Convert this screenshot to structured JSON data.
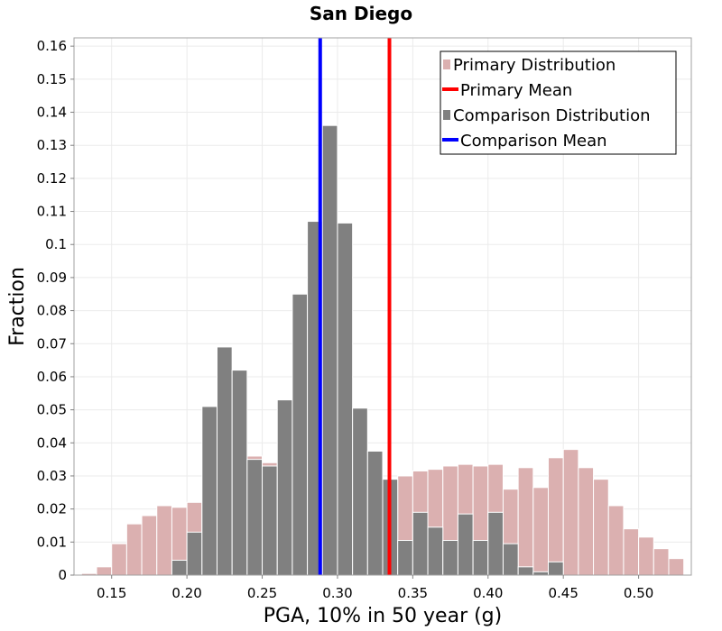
{
  "chart_data": {
    "type": "bar",
    "title": "San Diego",
    "xlabel": "PGA, 10% in 50 year (g)",
    "ylabel": "Fraction",
    "xlim": [
      0.125,
      0.535
    ],
    "ylim": [
      0,
      0.1625
    ],
    "bin_width": 0.01,
    "x_ticks": [
      "0.15",
      "0.20",
      "0.25",
      "0.30",
      "0.35",
      "0.40",
      "0.45",
      "0.50"
    ],
    "y_ticks": [
      "0",
      "0.01",
      "0.02",
      "0.03",
      "0.04",
      "0.05",
      "0.06",
      "0.07",
      "0.08",
      "0.09",
      "0.1",
      "0.11",
      "0.12",
      "0.13",
      "0.14",
      "0.15",
      "0.16"
    ],
    "legend_position": "top-right",
    "colors": {
      "primary_bar": "#dbb0b0",
      "primary_mean": "#ff0000",
      "comparison_bar": "#808080",
      "comparison_mean": "#0000ff",
      "grid": "#ebebeb",
      "bar_edge": "#ffffff"
    },
    "series": [
      {
        "name": "Primary Distribution",
        "kind": "histogram",
        "bin_centers": [
          0.135,
          0.145,
          0.155,
          0.165,
          0.175,
          0.185,
          0.195,
          0.205,
          0.215,
          0.225,
          0.235,
          0.245,
          0.255,
          0.265,
          0.275,
          0.285,
          0.295,
          0.305,
          0.315,
          0.325,
          0.335,
          0.345,
          0.355,
          0.365,
          0.375,
          0.385,
          0.395,
          0.405,
          0.415,
          0.425,
          0.435,
          0.445,
          0.455,
          0.465,
          0.475,
          0.485,
          0.495,
          0.505,
          0.515,
          0.525
        ],
        "values": [
          0.0005,
          0.0025,
          0.0095,
          0.0155,
          0.018,
          0.021,
          0.0205,
          0.022,
          0.025,
          0.029,
          0.0275,
          0.036,
          0.034,
          0.033,
          0.031,
          0.0275,
          0.032,
          0.029,
          0.027,
          0.025,
          0.0285,
          0.03,
          0.0315,
          0.032,
          0.033,
          0.0335,
          0.033,
          0.0335,
          0.026,
          0.0325,
          0.0265,
          0.0355,
          0.038,
          0.0325,
          0.029,
          0.021,
          0.014,
          0.0115,
          0.008,
          0.005
        ]
      },
      {
        "name": "Primary Mean",
        "kind": "vline",
        "x": 0.3345
      },
      {
        "name": "Comparison Distribution",
        "kind": "histogram",
        "bin_centers": [
          0.195,
          0.205,
          0.215,
          0.225,
          0.235,
          0.245,
          0.255,
          0.265,
          0.275,
          0.285,
          0.295,
          0.305,
          0.315,
          0.325,
          0.335,
          0.345,
          0.355,
          0.365,
          0.375,
          0.385,
          0.395,
          0.405,
          0.415,
          0.425,
          0.435,
          0.445
        ],
        "values": [
          0.0045,
          0.013,
          0.051,
          0.069,
          0.062,
          0.035,
          0.033,
          0.053,
          0.085,
          0.107,
          0.136,
          0.1065,
          0.0505,
          0.0375,
          0.029,
          0.0105,
          0.019,
          0.0145,
          0.0105,
          0.0185,
          0.0105,
          0.019,
          0.0095,
          0.0025,
          0.001,
          0.004
        ]
      },
      {
        "name": "Comparison Mean",
        "kind": "vline",
        "x": 0.2885
      }
    ]
  }
}
